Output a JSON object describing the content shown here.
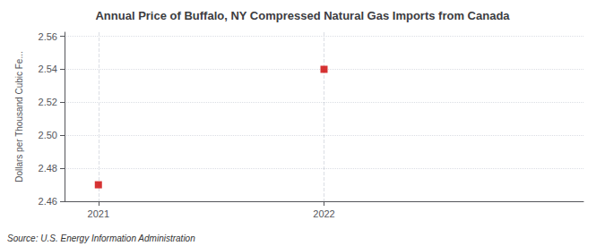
{
  "chart_data": {
    "type": "scatter",
    "title": "Annual Price of Buffalo, NY Compressed Natural Gas Imports from Canada",
    "ylabel": "Dollars per Thousand Cubic Fe...",
    "annotations": [
      "Source: U.S. Energy Information Administration"
    ],
    "x": [
      2021,
      2022
    ],
    "values": [
      2.47,
      2.54
    ],
    "color": "#cc0000",
    "marker": "square",
    "xlim": [
      2020.85,
      2023.15
    ],
    "xticks": [
      2021,
      2022
    ],
    "ylim": [
      2.46,
      2.5625
    ],
    "yticks": [
      2.46,
      2.48,
      {
        "value": 2.5,
        "label": "2.50"
      },
      2.52,
      2.54,
      2.56
    ],
    "grid": true
  }
}
